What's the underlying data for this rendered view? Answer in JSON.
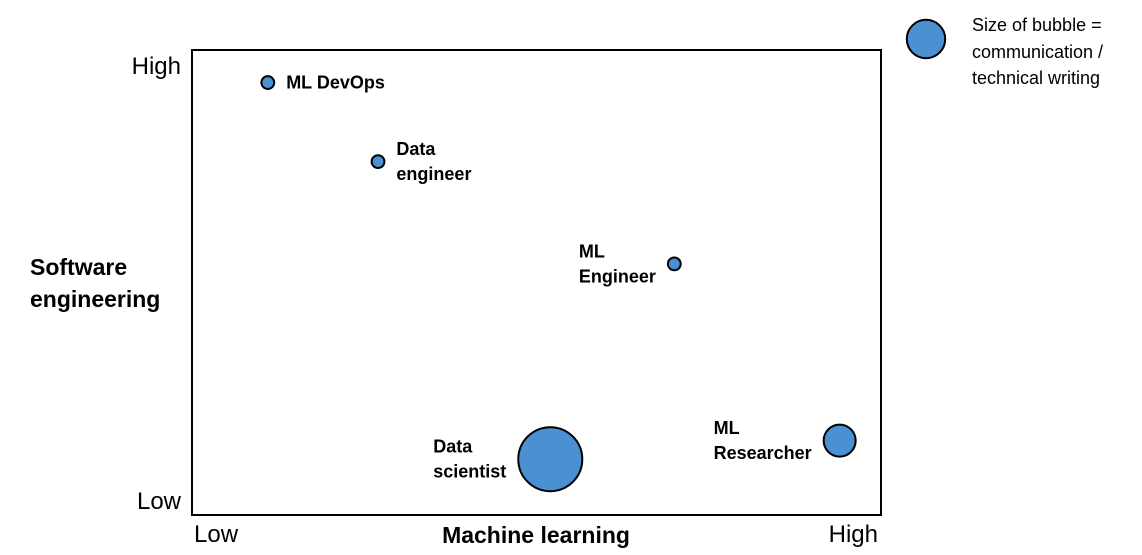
{
  "chart_data": {
    "type": "scatter",
    "title": "",
    "xlabel": "Machine learning",
    "ylabel": [
      "Software",
      "engineering"
    ],
    "x_ticks": [
      "Low",
      "High"
    ],
    "y_ticks": [
      "High",
      "Low"
    ],
    "xlim": [
      0,
      100
    ],
    "ylim": [
      0,
      100
    ],
    "bubble_color": "#4a90d2",
    "legend": {
      "text": [
        "Size of bubble =",
        "communication /",
        "technical writing"
      ],
      "position": "top-right",
      "bubble_size": 6
    },
    "points": [
      {
        "name": [
          "ML DevOps"
        ],
        "x": 11,
        "y": 93,
        "size": 2,
        "label_side": "right"
      },
      {
        "name": [
          "Data",
          "engineer"
        ],
        "x": 27,
        "y": 76,
        "size": 2,
        "label_side": "right"
      },
      {
        "name": [
          "ML",
          "Engineer"
        ],
        "x": 70,
        "y": 54,
        "size": 2,
        "label_side": "left"
      },
      {
        "name": [
          "Data",
          "scientist"
        ],
        "x": 52,
        "y": 12,
        "size": 10,
        "label_side": "left"
      },
      {
        "name": [
          "ML",
          "Researcher"
        ],
        "x": 94,
        "y": 16,
        "size": 5,
        "label_side": "left"
      }
    ]
  }
}
